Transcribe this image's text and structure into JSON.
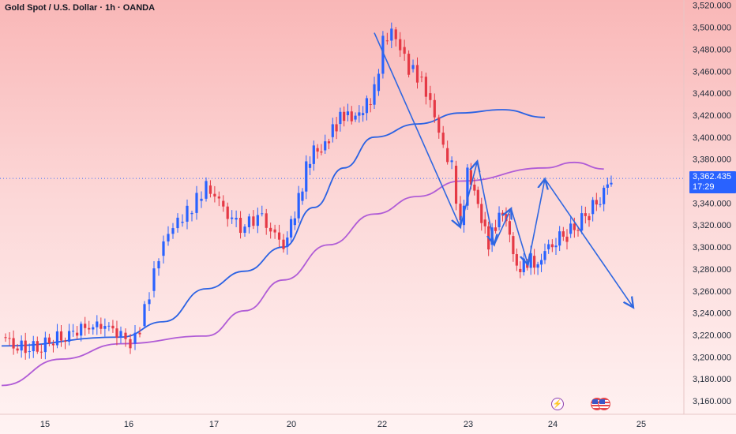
{
  "title": "Gold Spot / U.S. Dollar · 1h · OANDA",
  "current_price": {
    "value": 3362.435,
    "label": "3,362.435",
    "countdown": "17:29"
  },
  "colors": {
    "up": "#2962ff",
    "down": "#e53945",
    "ma_blue": "#2b62e3",
    "ma_purple": "#b05cd6",
    "annotation": "#2f67e0",
    "price_line": "#2962ff"
  },
  "events": [
    {
      "name": "lightning-event-icon",
      "glyph": "⚡",
      "date_label": "24"
    },
    {
      "name": "us-flag-event-icon",
      "glyph": "",
      "date_label": "24-25"
    }
  ],
  "chart_data": {
    "type": "line",
    "title": "Gold Spot / U.S. Dollar · 1h · OANDA",
    "y_axis": {
      "range": [
        3150,
        3520
      ],
      "ticks": [
        3160,
        3180,
        3200,
        3220,
        3240,
        3260,
        3280,
        3300,
        3320,
        3340,
        3360,
        3380,
        3400,
        3420,
        3440,
        3460,
        3480,
        3500,
        3520
      ],
      "tick_labels": [
        "3,160.000",
        "3,180.000",
        "3,200.000",
        "3,220.000",
        "3,240.000",
        "3,260.000",
        "3,280.000",
        "3,300.000",
        "3,320.000",
        "3,340.000",
        "3,360.000",
        "3,380.000",
        "3,400.000",
        "3,420.000",
        "3,440.000",
        "3,460.000",
        "3,480.000",
        "3,500.000",
        "3,520.000"
      ]
    },
    "x_axis": {
      "tick_labels": [
        "15",
        "16",
        "17",
        "20",
        "22",
        "23",
        "24",
        "25"
      ]
    },
    "candles_price_path": [
      [
        "15",
        3218
      ],
      [
        "15",
        3205
      ],
      [
        "15",
        3212
      ],
      [
        "15",
        3222
      ],
      [
        "15",
        3230
      ],
      [
        "16",
        3222
      ],
      [
        "16",
        3212
      ],
      [
        "16",
        3228
      ],
      [
        "16",
        3260
      ],
      [
        "16",
        3292
      ],
      [
        "16",
        3312
      ],
      [
        "16",
        3322
      ],
      [
        "16",
        3330
      ],
      [
        "16",
        3342
      ],
      [
        "17",
        3356
      ],
      [
        "17",
        3342
      ],
      [
        "17",
        3325
      ],
      [
        "17",
        3318
      ],
      [
        "17",
        3330
      ],
      [
        "17",
        3316
      ],
      [
        "20",
        3300
      ],
      [
        "20",
        3320
      ],
      [
        "20",
        3342
      ],
      [
        "20",
        3372
      ],
      [
        "20",
        3390
      ],
      [
        "20",
        3388
      ],
      [
        "20",
        3400
      ],
      [
        "20",
        3412
      ],
      [
        "20",
        3420
      ],
      [
        "20",
        3416
      ],
      [
        "20",
        3420
      ],
      [
        "20",
        3430
      ],
      [
        "22",
        3442
      ],
      [
        "22",
        3488
      ],
      [
        "22",
        3498
      ],
      [
        "22",
        3482
      ],
      [
        "22",
        3462
      ],
      [
        "22",
        3455
      ],
      [
        "22",
        3440
      ],
      [
        "22",
        3418
      ],
      [
        "22",
        3390
      ],
      [
        "22",
        3374
      ],
      [
        "23",
        3320
      ],
      [
        "23",
        3370
      ],
      [
        "23",
        3352
      ],
      [
        "23",
        3325
      ],
      [
        "23",
        3302
      ],
      [
        "23",
        3318
      ],
      [
        "23",
        3330
      ],
      [
        "23",
        3310
      ],
      [
        "23",
        3280
      ],
      [
        "23",
        3286
      ],
      [
        "23",
        3292
      ],
      [
        "23",
        3284
      ],
      [
        "24",
        3298
      ],
      [
        "24",
        3312
      ],
      [
        "24",
        3330
      ],
      [
        "24",
        3360
      ]
    ],
    "series": [
      {
        "name": "",
        "color": "#2b62e3",
        "points": [
          [
            "15",
            3210
          ],
          [
            "16",
            3218
          ],
          [
            "16",
            3232
          ],
          [
            "17",
            3262
          ],
          [
            "17",
            3278
          ],
          [
            "20",
            3300
          ],
          [
            "20",
            3336
          ],
          [
            "20",
            3372
          ],
          [
            "22",
            3400
          ],
          [
            "22",
            3412
          ],
          [
            "23",
            3422
          ],
          [
            "23",
            3425
          ],
          [
            "24",
            3418
          ]
        ]
      },
      {
        "name": "",
        "color": "#b05cd6",
        "points": [
          [
            "15",
            3174
          ],
          [
            "15",
            3198
          ],
          [
            "16",
            3212
          ],
          [
            "17",
            3219
          ],
          [
            "17",
            3242
          ],
          [
            "20",
            3270
          ],
          [
            "20",
            3302
          ],
          [
            "22",
            3330
          ],
          [
            "22",
            3346
          ],
          [
            "23",
            3360
          ],
          [
            "24",
            3372
          ],
          [
            "24",
            3377
          ],
          [
            "24",
            3371
          ]
        ]
      }
    ],
    "annotation_path": [
      [
        "22",
        3495
      ],
      [
        "23",
        3318
      ],
      [
        "23",
        3378
      ],
      [
        "23",
        3302
      ],
      [
        "23",
        3335
      ],
      [
        "23",
        3284
      ],
      [
        "24",
        3362
      ],
      [
        "25",
        3245
      ]
    ],
    "current_price_line": 3362.435,
    "grid": false,
    "legend": "none"
  }
}
